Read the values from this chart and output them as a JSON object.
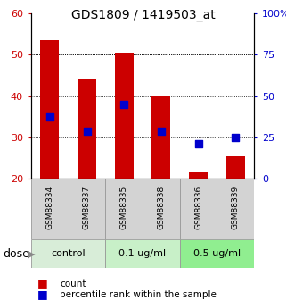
{
  "title": "GDS1809 / 1419503_at",
  "samples": [
    "GSM88334",
    "GSM88337",
    "GSM88335",
    "GSM88338",
    "GSM88336",
    "GSM88339"
  ],
  "group_colors_per_sample": [
    "#d8edd8",
    "#d8edd8",
    "#c8f0c8",
    "#c8f0c8",
    "#90ee90",
    "#90ee90"
  ],
  "group_info": [
    {
      "label": "control",
      "start": 0,
      "end": 1,
      "color": "#d8edd8"
    },
    {
      "label": "0.1 ug/ml",
      "start": 2,
      "end": 3,
      "color": "#c8f0c8"
    },
    {
      "label": "0.5 ug/ml",
      "start": 4,
      "end": 5,
      "color": "#90ee90"
    }
  ],
  "bar_bottom": 20,
  "count_values": [
    53.5,
    44.0,
    50.5,
    40.0,
    21.5,
    25.5
  ],
  "percentile_values": [
    35.0,
    31.5,
    38.0,
    31.5,
    28.5,
    30.0
  ],
  "ylim_left": [
    20,
    60
  ],
  "ylim_right": [
    0,
    100
  ],
  "yticks_left": [
    20,
    30,
    40,
    50,
    60
  ],
  "yticks_right": [
    0,
    25,
    50,
    75,
    100
  ],
  "ytick_right_labels": [
    "0",
    "25",
    "50",
    "75",
    "100%"
  ],
  "bar_color": "#cc0000",
  "dot_color": "#0000cc",
  "bar_width": 0.5,
  "dot_size": 40,
  "grid_yticks": [
    30,
    40,
    50
  ],
  "ylabel_left_color": "#cc0000",
  "ylabel_right_color": "#0000cc",
  "background_color": "#ffffff",
  "label_box_color": "#d3d3d3",
  "dose_label": "dose",
  "legend_count": "count",
  "legend_percentile": "percentile rank within the sample",
  "title_fontsize": 10,
  "tick_fontsize": 8,
  "sample_fontsize": 6.5,
  "group_fontsize": 8,
  "legend_fontsize": 7.5,
  "dose_fontsize": 9
}
